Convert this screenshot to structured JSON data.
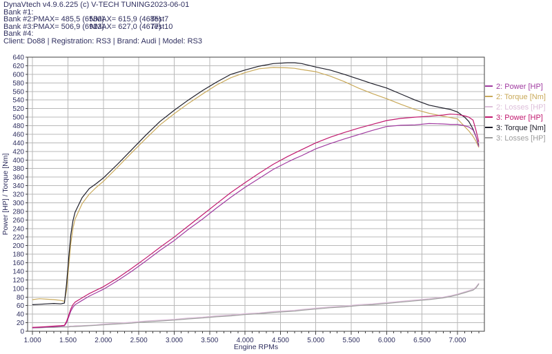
{
  "header": {
    "app_title": "DynaVtech v4.9.6.225 (c) V-TECH TUNING.",
    "date": "2023-06-01",
    "banks": [
      {
        "label": "Bank #1:",
        "pmax": "",
        "nmax": "",
        "test": ""
      },
      {
        "label": "Bank #2:",
        "pmax": "PMAX= 485,5 (6550)",
        "nmax": "NMAX= 615,9 (4685)",
        "test": "Test7"
      },
      {
        "label": "Bank #3:",
        "pmax": "PMAX= 506,9 (6913)",
        "nmax": "NMAX= 627,0 (4677)",
        "test": "Test10"
      },
      {
        "label": "Bank #4:",
        "pmax": "",
        "nmax": "",
        "test": ""
      }
    ],
    "client_line": "Client: Do88 | Registration: RS3 | Brand: Audi | Model: RS3"
  },
  "colors": {
    "text": "#2f2f5f",
    "grid": "#b8b8b8",
    "axis_border": "#3f3f3f",
    "background": "#ffffff"
  },
  "chart_data": {
    "type": "line",
    "title": "",
    "xlabel": "Engine RPMs",
    "ylabel": "Power [HP] / Torque [Nm]",
    "xlim": [
      930,
      7380
    ],
    "ylim": [
      0,
      640
    ],
    "y_tick_step": 20,
    "x_minor_tick_step": 100,
    "grid": true,
    "legend_position": "right-outside",
    "x_ticks": [
      {
        "v": 1000,
        "label": "1.000"
      },
      {
        "v": 1500,
        "label": "1.500"
      },
      {
        "v": 2000,
        "label": "2.000"
      },
      {
        "v": 2500,
        "label": "2.500"
      },
      {
        "v": 3000,
        "label": "3.000"
      },
      {
        "v": 3500,
        "label": "3.500"
      },
      {
        "v": 4000,
        "label": "4.000"
      },
      {
        "v": 4500,
        "label": "4.500"
      },
      {
        "v": 5000,
        "label": "5.000"
      },
      {
        "v": 5500,
        "label": "5.500"
      },
      {
        "v": 6000,
        "label": "6.000"
      },
      {
        "v": 6500,
        "label": "6.500"
      },
      {
        "v": 7000,
        "label": "7.000"
      }
    ],
    "x": [
      1000,
      1100,
      1200,
      1300,
      1400,
      1450,
      1480,
      1510,
      1540,
      1570,
      1600,
      1700,
      1800,
      1900,
      2000,
      2200,
      2400,
      2600,
      2800,
      3000,
      3200,
      3400,
      3600,
      3800,
      4000,
      4200,
      4400,
      4600,
      4700,
      4800,
      5000,
      5200,
      5400,
      5600,
      5800,
      6000,
      6200,
      6400,
      6600,
      6800,
      6900,
      7000,
      7100,
      7160,
      7220,
      7260,
      7300
    ],
    "series": [
      {
        "id": "series-2-power-hp",
        "name": "2: Power [HP]",
        "color": "#a03aa0",
        "values": [
          8,
          9,
          10,
          11,
          12,
          13,
          20,
          33,
          47,
          56,
          62,
          72,
          82,
          90,
          98,
          118,
          140,
          164,
          189,
          212,
          238,
          262,
          288,
          313,
          336,
          357,
          378,
          395,
          403,
          410,
          426,
          438,
          449,
          459,
          469,
          478,
          481,
          482,
          485,
          484,
          483,
          483,
          480,
          477,
          470,
          455,
          432
        ]
      },
      {
        "id": "series-2-torque-nm",
        "name": "2: Torque [Nm]",
        "color": "#c9a959",
        "values": [
          74,
          76,
          75,
          74,
          72,
          70,
          95,
          150,
          205,
          240,
          262,
          298,
          320,
          336,
          350,
          383,
          417,
          450,
          482,
          508,
          532,
          554,
          575,
          592,
          604,
          613,
          616,
          615,
          614,
          611,
          606,
          596,
          583,
          568,
          555,
          543,
          530,
          518,
          509,
          502,
          499,
          496,
          478,
          468,
          455,
          444,
          430
        ]
      },
      {
        "id": "series-2-losses-hp",
        "name": "2: Losses [HP]",
        "color": "#ddbfda",
        "values": [
          9,
          9,
          10,
          10,
          11,
          11,
          11,
          12,
          12,
          12,
          13,
          13,
          14,
          15,
          17,
          19,
          21,
          24,
          26,
          28,
          31,
          33,
          36,
          38,
          41,
          43,
          46,
          48,
          49,
          51,
          54,
          57,
          59,
          62,
          64,
          67,
          70,
          73,
          76,
          80,
          83,
          87,
          92,
          95,
          98,
          103,
          112
        ]
      },
      {
        "id": "series-3-power-hp",
        "name": "3: Power [HP]",
        "color": "#c1186e",
        "values": [
          9,
          10,
          11,
          12,
          13,
          14,
          23,
          37,
          52,
          62,
          68,
          78,
          88,
          96,
          104,
          124,
          147,
          171,
          196,
          220,
          246,
          272,
          298,
          324,
          347,
          369,
          390,
          408,
          416,
          424,
          440,
          453,
          464,
          474,
          483,
          492,
          497,
          500,
          502,
          505,
          507,
          506,
          503,
          500,
          493,
          470,
          443
        ]
      },
      {
        "id": "series-3-torque-nm",
        "name": "3: Torque [Nm]",
        "color": "#1c1c28",
        "values": [
          62,
          63,
          64,
          65,
          64,
          66,
          110,
          170,
          225,
          258,
          278,
          312,
          333,
          345,
          358,
          390,
          424,
          458,
          490,
          516,
          540,
          562,
          582,
          600,
          610,
          619,
          625,
          627,
          627,
          625,
          617,
          610,
          600,
          589,
          578,
          568,
          554,
          540,
          528,
          521,
          518,
          512,
          500,
          490,
          472,
          455,
          435
        ]
      },
      {
        "id": "series-3-losses-hp",
        "name": "3: Losses [HP]",
        "color": "#9c9c9c",
        "values": [
          8,
          8,
          9,
          9,
          10,
          10,
          10,
          10,
          11,
          11,
          11,
          12,
          13,
          14,
          15,
          17,
          19,
          22,
          24,
          26,
          29,
          31,
          34,
          36,
          39,
          41,
          44,
          46,
          47,
          49,
          52,
          55,
          57,
          60,
          62,
          65,
          68,
          71,
          74,
          78,
          81,
          85,
          90,
          93,
          96,
          101,
          110
        ]
      }
    ]
  }
}
